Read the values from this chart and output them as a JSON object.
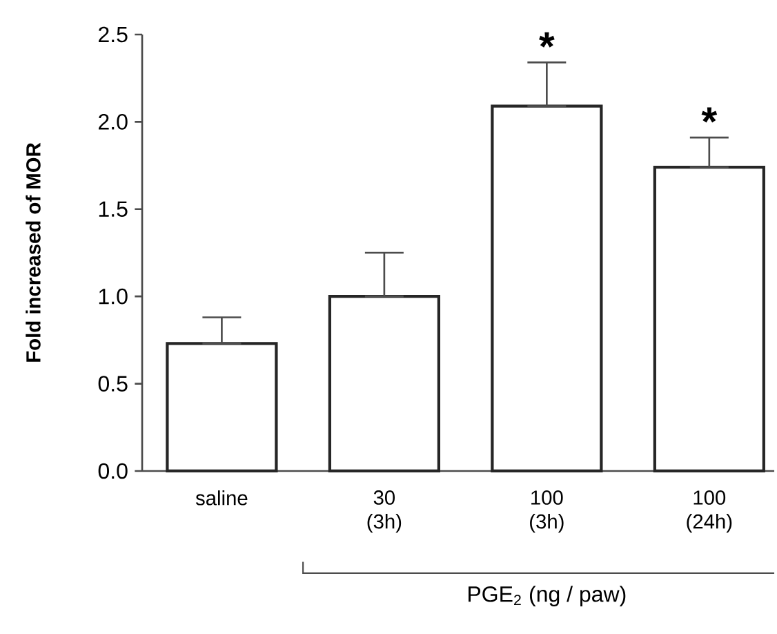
{
  "chart_data": {
    "type": "bar",
    "ylabel": "Fold increased of MOR",
    "xlabel": "PGE$_{2}$ (ng / paw)",
    "categories": [
      "saline",
      "30 (3h)",
      "100 (3h)",
      "100 (24h)"
    ],
    "values": [
      0.73,
      1.0,
      2.09,
      1.74
    ],
    "errors": [
      [
        0.73,
        0.88
      ],
      [
        1.0,
        1.25
      ],
      [
        2.09,
        2.34
      ],
      [
        1.74,
        1.91
      ]
    ],
    "color": "#ffffff",
    "ylim": [
      0,
      2.5
    ],
    "yticks": [
      {
        "value": 0,
        "label": "0.0"
      },
      0.5,
      {
        "value": 1,
        "label": "1.0"
      },
      1.5,
      {
        "value": 2,
        "label": "2.0"
      },
      2.5
    ],
    "annotations": [
      {
        "text": "*",
        "x": "100 (3h)",
        "y": 2.34
      },
      {
        "text": "*",
        "x": "100 (24h)",
        "y": 1.91
      }
    ]
  }
}
